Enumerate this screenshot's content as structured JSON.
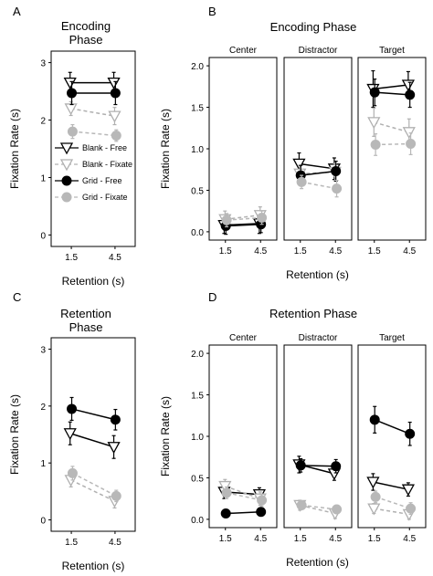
{
  "legend": {
    "entries": [
      {
        "label": "Blank - Free",
        "marker": "triangle",
        "fill": "#ffffff",
        "stroke": "#000000",
        "line": "solid"
      },
      {
        "label": "Blank - Fixate",
        "marker": "triangle",
        "fill": "#ffffff",
        "stroke": "#b0b0b0",
        "line": "dashed"
      },
      {
        "label": "Grid - Free",
        "marker": "circle",
        "fill": "#000000",
        "stroke": "#000000",
        "line": "solid"
      },
      {
        "label": "Grid - Fixate",
        "marker": "circle",
        "fill": "#b8b8b8",
        "stroke": "#b8b8b8",
        "line": "dashed"
      }
    ]
  },
  "chart_data": [
    {
      "panel": "A",
      "type": "line",
      "title": "Encoding Phase",
      "title_lines": [
        "Encoding",
        "Phase"
      ],
      "xlabel": "Retention (s)",
      "ylabel": "Fixation Rate (s)",
      "x": [
        "1.5",
        "4.5"
      ],
      "ylim": [
        -0.2,
        3.2
      ],
      "yticks": [
        "0",
        "1",
        "2",
        "3"
      ],
      "legend_placement": "lower-left inside",
      "facets": [
        {
          "label": "",
          "series": [
            {
              "name": "Blank - Free",
              "values": [
                2.65,
                2.65
              ],
              "err": [
                0.18,
                0.18
              ]
            },
            {
              "name": "Blank - Fixate",
              "values": [
                2.2,
                2.07
              ],
              "err": [
                0.12,
                0.15
              ]
            },
            {
              "name": "Grid - Free",
              "values": [
                2.47,
                2.47
              ],
              "err": [
                0.2,
                0.2
              ]
            },
            {
              "name": "Grid - Fixate",
              "values": [
                1.8,
                1.73
              ],
              "err": [
                0.12,
                0.1
              ]
            }
          ]
        }
      ]
    },
    {
      "panel": "B",
      "type": "line",
      "title": "Encoding Phase",
      "title_lines": [
        "Encoding Phase"
      ],
      "xlabel": "Retention (s)",
      "ylabel": "Fixation Rate (s)",
      "x": [
        "1.5",
        "4.5"
      ],
      "ylim": [
        -0.1,
        2.1
      ],
      "yticks": [
        "0.0",
        "0.5",
        "1.0",
        "1.5",
        "2.0"
      ],
      "facets": [
        {
          "label": "Center",
          "series": [
            {
              "name": "Blank - Free",
              "values": [
                0.08,
                0.1
              ],
              "err": [
                0.1,
                0.12
              ]
            },
            {
              "name": "Blank - Fixate",
              "values": [
                0.15,
                0.2
              ],
              "err": [
                0.1,
                0.1
              ]
            },
            {
              "name": "Grid - Free",
              "values": [
                0.07,
                0.09
              ],
              "err": [
                0.1,
                0.1
              ]
            },
            {
              "name": "Grid - Fixate",
              "values": [
                0.14,
                0.17
              ],
              "err": [
                0.08,
                0.08
              ]
            }
          ]
        },
        {
          "label": "Distractor",
          "series": [
            {
              "name": "Blank - Free",
              "values": [
                0.82,
                0.76
              ],
              "err": [
                0.13,
                0.13
              ]
            },
            {
              "name": "Blank - Fixate",
              "values": [
                0.7,
                0.72
              ],
              "err": [
                0.1,
                0.1
              ]
            },
            {
              "name": "Grid - Free",
              "values": [
                0.68,
                0.73
              ],
              "err": [
                0.12,
                0.12
              ]
            },
            {
              "name": "Grid - Fixate",
              "values": [
                0.6,
                0.52
              ],
              "err": [
                0.08,
                0.1
              ]
            }
          ]
        },
        {
          "label": "Target",
          "series": [
            {
              "name": "Blank - Free",
              "values": [
                1.72,
                1.77
              ],
              "err": [
                0.22,
                0.16
              ]
            },
            {
              "name": "Blank - Fixate",
              "values": [
                1.32,
                1.2
              ],
              "err": [
                0.17,
                0.16
              ]
            },
            {
              "name": "Grid - Free",
              "values": [
                1.68,
                1.65
              ],
              "err": [
                0.16,
                0.15
              ]
            },
            {
              "name": "Grid - Fixate",
              "values": [
                1.05,
                1.06
              ],
              "err": [
                0.13,
                0.13
              ]
            }
          ]
        }
      ]
    },
    {
      "panel": "C",
      "type": "line",
      "title": "Retention Phase",
      "title_lines": [
        "Retention",
        "Phase"
      ],
      "xlabel": "Retention (s)",
      "ylabel": "Fixation Rate (s)",
      "x": [
        "1.5",
        "4.5"
      ],
      "ylim": [
        -0.2,
        3.2
      ],
      "yticks": [
        "0",
        "1",
        "2",
        "3"
      ],
      "facets": [
        {
          "label": "",
          "series": [
            {
              "name": "Blank - Free",
              "values": [
                1.52,
                1.28
              ],
              "err": [
                0.2,
                0.2
              ]
            },
            {
              "name": "Blank - Fixate",
              "values": [
                0.7,
                0.33
              ],
              "err": [
                0.12,
                0.12
              ]
            },
            {
              "name": "Grid - Free",
              "values": [
                1.95,
                1.76
              ],
              "err": [
                0.2,
                0.18
              ]
            },
            {
              "name": "Grid - Fixate",
              "values": [
                0.82,
                0.42
              ],
              "err": [
                0.12,
                0.1
              ]
            }
          ]
        }
      ]
    },
    {
      "panel": "D",
      "type": "line",
      "title": "Retention Phase",
      "title_lines": [
        "Retention Phase"
      ],
      "xlabel": "Retention (s)",
      "ylabel": "Fixation Rate (s)",
      "x": [
        "1.5",
        "4.5"
      ],
      "ylim": [
        -0.1,
        2.1
      ],
      "yticks": [
        "0.0",
        "0.5",
        "1.0",
        "1.5",
        "2.0"
      ],
      "facets": [
        {
          "label": "Center",
          "series": [
            {
              "name": "Blank - Free",
              "values": [
                0.33,
                0.3
              ],
              "err": [
                0.08,
                0.08
              ]
            },
            {
              "name": "Blank - Fixate",
              "values": [
                0.4,
                0.25
              ],
              "err": [
                0.08,
                0.08
              ]
            },
            {
              "name": "Grid - Free",
              "values": [
                0.07,
                0.09
              ],
              "err": [
                0.03,
                0.03
              ]
            },
            {
              "name": "Grid - Fixate",
              "values": [
                0.32,
                0.23
              ],
              "err": [
                0.07,
                0.07
              ]
            }
          ]
        },
        {
          "label": "Distractor",
          "series": [
            {
              "name": "Blank - Free",
              "values": [
                0.66,
                0.55
              ],
              "err": [
                0.1,
                0.08
              ]
            },
            {
              "name": "Blank - Fixate",
              "values": [
                0.17,
                0.07
              ],
              "err": [
                0.06,
                0.06
              ]
            },
            {
              "name": "Grid - Free",
              "values": [
                0.65,
                0.64
              ],
              "err": [
                0.08,
                0.08
              ]
            },
            {
              "name": "Grid - Fixate",
              "values": [
                0.17,
                0.12
              ],
              "err": [
                0.05,
                0.05
              ]
            }
          ]
        },
        {
          "label": "Target",
          "series": [
            {
              "name": "Blank - Free",
              "values": [
                0.45,
                0.36
              ],
              "err": [
                0.1,
                0.08
              ]
            },
            {
              "name": "Blank - Fixate",
              "values": [
                0.13,
                0.06
              ],
              "err": [
                0.06,
                0.06
              ]
            },
            {
              "name": "Grid - Free",
              "values": [
                1.2,
                1.03
              ],
              "err": [
                0.16,
                0.14
              ]
            },
            {
              "name": "Grid - Fixate",
              "values": [
                0.27,
                0.13
              ],
              "err": [
                0.07,
                0.07
              ]
            }
          ]
        }
      ]
    }
  ]
}
